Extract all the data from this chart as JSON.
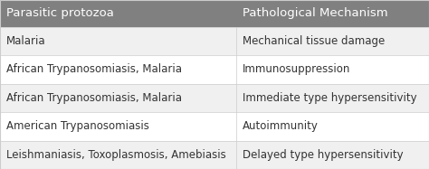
{
  "header": [
    "Parasitic protozoa",
    "Pathological Mechanism"
  ],
  "rows": [
    [
      "Malaria",
      "Mechanical tissue damage"
    ],
    [
      "African Trypanosomiasis, Malaria",
      "Immunosuppression"
    ],
    [
      "African Trypanosomiasis, Malaria",
      "Immediate type hypersensitivity"
    ],
    [
      "American Trypanosomiasis",
      "Autoimmunity"
    ],
    [
      "Leishmaniasis, Toxoplasmosis, Amebiasis",
      "Delayed type hypersensitivity"
    ]
  ],
  "header_bg": "#808080",
  "header_text_color": "#ffffff",
  "row_bg_odd": "#f0f0f0",
  "row_bg_even": "#ffffff",
  "row_text_color": "#333333",
  "border_color": "#cccccc",
  "col_split": 0.55,
  "header_fontsize": 9.5,
  "row_fontsize": 8.5,
  "fig_width": 4.74,
  "fig_height": 1.87
}
